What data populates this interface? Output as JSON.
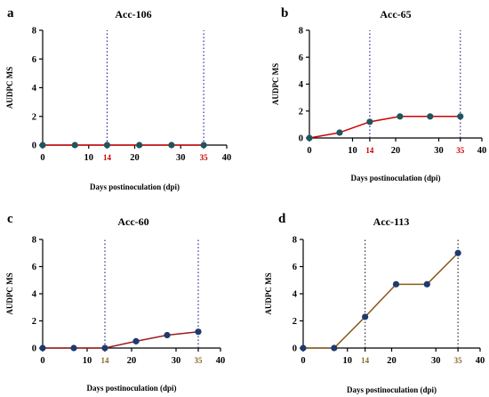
{
  "figure": {
    "background": "#ffffff"
  },
  "chart_data": [
    {
      "letter": "a",
      "title": "Acc-106",
      "type": "line",
      "x": [
        0,
        7,
        14,
        21,
        28,
        35
      ],
      "y": [
        0,
        0,
        0,
        0,
        0,
        0
      ],
      "xlabel": "Days postinoculation (dpi)",
      "ylabel": "AUDPC MS",
      "xlim": [
        0,
        40
      ],
      "ylim": [
        0,
        8
      ],
      "xticks": [
        "0",
        "10",
        "14",
        "20",
        "30",
        "35",
        "40"
      ],
      "yticks": [
        "0",
        "2",
        "4",
        "6",
        "8"
      ],
      "vlines": [
        14,
        35
      ],
      "line_color": "#cc0000",
      "marker_color": "#1e5560",
      "vline_color": "#1a1a8c",
      "marker_label_color": "#cc0000",
      "marker_labels": [
        "14",
        "35"
      ]
    },
    {
      "letter": "b",
      "title": "Acc-65",
      "type": "line",
      "x": [
        0,
        7,
        14,
        21,
        28,
        35
      ],
      "y": [
        0,
        0.4,
        1.2,
        1.6,
        1.6,
        1.6
      ],
      "xlabel": "Days postinoculation (dpi)",
      "ylabel": "AUDPC MS",
      "xlim": [
        0,
        40
      ],
      "ylim": [
        0,
        8
      ],
      "xticks": [
        "0",
        "10",
        "14",
        "20",
        "30",
        "35",
        "40"
      ],
      "yticks": [
        "0",
        "2",
        "4",
        "6",
        "8"
      ],
      "vlines": [
        14,
        35
      ],
      "line_color": "#cc0000",
      "marker_color": "#1e5560",
      "vline_color": "#1a1a8c",
      "marker_label_color": "#cc0000",
      "marker_labels": [
        "14",
        "35"
      ]
    },
    {
      "letter": "c",
      "title": "Acc-60",
      "type": "line",
      "x": [
        0,
        7,
        14,
        21,
        28,
        35
      ],
      "y": [
        0,
        0,
        0,
        0.5,
        0.95,
        1.2
      ],
      "xlabel": "Days postinoculation (dpi)",
      "ylabel": "AUDPC MS",
      "xlim": [
        0,
        40
      ],
      "ylim": [
        0,
        8
      ],
      "xticks": [
        "0",
        "10",
        "14",
        "20",
        "30",
        "35",
        "40"
      ],
      "yticks": [
        "0",
        "2",
        "4",
        "6",
        "8"
      ],
      "vlines": [
        14,
        35
      ],
      "line_color": "#9b1c1c",
      "marker_color": "#1e3a6e",
      "vline_color": "#1a1a8c",
      "marker_label_color": "#8a6a2a",
      "marker_labels": [
        "14",
        "35"
      ]
    },
    {
      "letter": "d",
      "title": "Acc-113",
      "type": "line",
      "x": [
        0,
        7,
        14,
        21,
        28,
        35
      ],
      "y": [
        0,
        0,
        2.3,
        4.7,
        4.7,
        7
      ],
      "xlabel": "Days postinoculation (dpi)",
      "ylabel": "AUDPC MS",
      "xlim": [
        0,
        40
      ],
      "ylim": [
        0,
        8
      ],
      "xticks": [
        "0",
        "10",
        "14",
        "20",
        "30",
        "35",
        "40"
      ],
      "yticks": [
        "0",
        "2",
        "4",
        "6",
        "8"
      ],
      "vlines": [
        14,
        35
      ],
      "line_color": "#8a5a1a",
      "marker_color": "#1e3a6e",
      "vline_color": "#1a1a2e",
      "marker_label_color": "#8a6a2a",
      "marker_labels": [
        "14",
        "35"
      ]
    }
  ]
}
